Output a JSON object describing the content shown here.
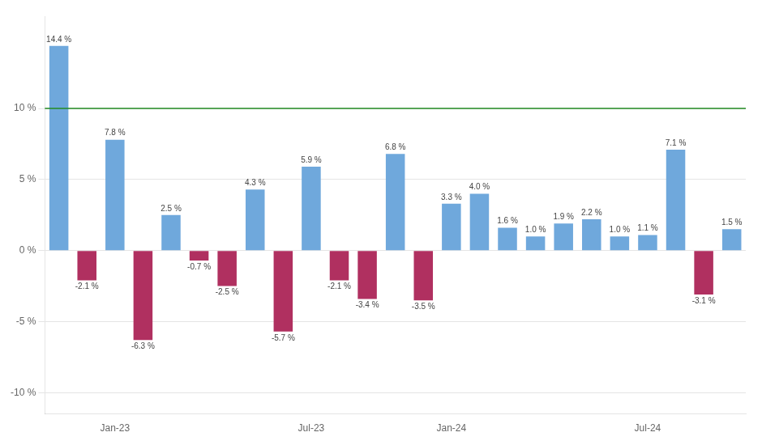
{
  "chart_data": {
    "type": "bar",
    "categories": [
      null,
      null,
      "Jan-23",
      null,
      null,
      null,
      null,
      null,
      null,
      "Jul-23",
      null,
      null,
      null,
      null,
      "Jan-24",
      null,
      null,
      null,
      null,
      null,
      null,
      "Jul-24",
      null,
      null,
      null
    ],
    "values": [
      14.4,
      -2.1,
      7.8,
      -6.3,
      2.5,
      -0.7,
      -2.5,
      4.3,
      -5.7,
      5.9,
      -2.1,
      -3.4,
      6.8,
      -3.5,
      3.3,
      4.0,
      1.6,
      1.0,
      1.9,
      2.2,
      1.0,
      1.1,
      7.1,
      -3.1,
      1.5
    ],
    "value_labels": [
      "14.4 %",
      "-2.1 %",
      "7.8 %",
      "-6.3 %",
      "2.5 %",
      "-0.7 %",
      "-2.5 %",
      "4.3 %",
      "-5.7 %",
      "5.9 %",
      "-2.1 %",
      "-3.4 %",
      "6.8 %",
      "-3.5 %",
      "3.3 %",
      "4.0 %",
      "1.6 %",
      "1.0 %",
      "1.9 %",
      "2.2 %",
      "1.0 %",
      "1.1 %",
      "7.1 %",
      "-3.1 %",
      "1.5 %"
    ],
    "colors": [
      "#6fa8dc",
      "#b03060",
      "#6fa8dc",
      "#b03060",
      "#6fa8dc",
      "#b03060",
      "#b03060",
      "#6fa8dc",
      "#b03060",
      "#6fa8dc",
      "#b03060",
      "#b03060",
      "#6fa8dc",
      "#b03060",
      "#6fa8dc",
      "#6fa8dc",
      "#6fa8dc",
      "#6fa8dc",
      "#6fa8dc",
      "#6fa8dc",
      "#6fa8dc",
      "#6fa8dc",
      "#6fa8dc",
      "#b03060",
      "#6fa8dc"
    ],
    "hlines": [
      {
        "value": 10.0,
        "color": "#228B22"
      }
    ],
    "ylim": [
      -11.5,
      16.5
    ],
    "yticks": [
      {
        "value": -10,
        "label": "-10 %"
      },
      {
        "value": -5,
        "label": "-5 %"
      },
      {
        "value": 0,
        "label": "0 %"
      },
      {
        "value": 5,
        "label": "5 %"
      },
      {
        "value": 10,
        "label": "10 %"
      }
    ],
    "grid": true,
    "data_labels": true
  }
}
